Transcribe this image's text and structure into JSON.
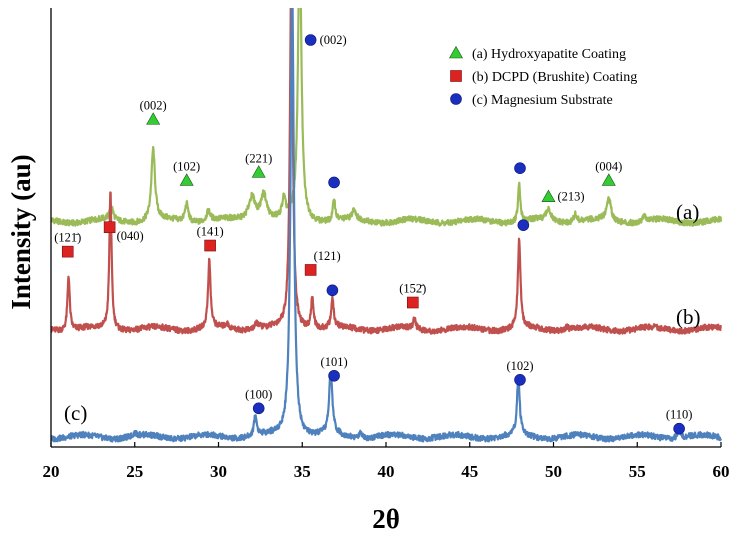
{
  "chart_data": {
    "type": "line",
    "title": "",
    "xlabel": "2θ",
    "ylabel": "Intensity (au)",
    "xlim": [
      20,
      60
    ],
    "ylim": [
      0,
      100
    ],
    "xticks": [
      20,
      25,
      30,
      35,
      40,
      45,
      50,
      55,
      60
    ],
    "grid": false,
    "legend_position": "top-right",
    "legend": [
      {
        "marker": "triangle",
        "label": "(a) Hydroxyapatite Coating",
        "color": "#33cc33"
      },
      {
        "marker": "square",
        "label": "(b) DCPD (Brushite) Coating",
        "color": "#dd2222"
      },
      {
        "marker": "circle",
        "label": "(c) Magnesium Substrate",
        "color": "#1a2fbf"
      }
    ],
    "series": [
      {
        "name": "(a)",
        "label": "(a)",
        "color": "#9bbb59",
        "baseline": 55.5,
        "peaks": [
          {
            "x": 23.6,
            "h": 3.5,
            "w": 0.12
          },
          {
            "x": 26.1,
            "h": 17.5,
            "w": 0.13
          },
          {
            "x": 28.1,
            "h": 4.5,
            "w": 0.12
          },
          {
            "x": 29.4,
            "h": 2.5,
            "w": 0.15
          },
          {
            "x": 32.0,
            "h": 6.0,
            "w": 0.25
          },
          {
            "x": 32.7,
            "h": 6.5,
            "w": 0.22
          },
          {
            "x": 33.9,
            "h": 4.5,
            "w": 0.12
          },
          {
            "x": 34.85,
            "h": 70.0,
            "w": 0.12
          },
          {
            "x": 36.9,
            "h": 5.5,
            "w": 0.08
          },
          {
            "x": 38.1,
            "h": 2.5,
            "w": 0.12
          },
          {
            "x": 47.95,
            "h": 9.0,
            "w": 0.08
          },
          {
            "x": 49.7,
            "h": 3.0,
            "w": 0.15
          },
          {
            "x": 51.3,
            "h": 2.0,
            "w": 0.12
          },
          {
            "x": 53.3,
            "h": 5.5,
            "w": 0.15
          },
          {
            "x": 55.4,
            "h": 1.5,
            "w": 0.1
          }
        ]
      },
      {
        "name": "(b)",
        "label": "(b)",
        "color": "#c0504d",
        "baseline": 29.0,
        "peaks": [
          {
            "x": 21.05,
            "h": 13.5,
            "w": 0.08
          },
          {
            "x": 23.55,
            "h": 34.0,
            "w": 0.08
          },
          {
            "x": 29.45,
            "h": 16.5,
            "w": 0.09
          },
          {
            "x": 30.5,
            "h": 1.0,
            "w": 0.1
          },
          {
            "x": 32.3,
            "h": 1.5,
            "w": 0.2
          },
          {
            "x": 34.35,
            "h": 90.0,
            "w": 0.1
          },
          {
            "x": 35.6,
            "h": 7.5,
            "w": 0.1
          },
          {
            "x": 36.8,
            "h": 7.0,
            "w": 0.09
          },
          {
            "x": 41.7,
            "h": 2.5,
            "w": 0.08
          },
          {
            "x": 47.95,
            "h": 22.0,
            "w": 0.09
          },
          {
            "x": 50.8,
            "h": 0.8,
            "w": 0.12
          }
        ]
      },
      {
        "name": "(c)",
        "label": "(c)",
        "color": "#4f81bd",
        "baseline": 2.5,
        "peaks": [
          {
            "x": 25.0,
            "h": 0.8,
            "w": 0.1
          },
          {
            "x": 32.2,
            "h": 5.0,
            "w": 0.1
          },
          {
            "x": 34.4,
            "h": 110.0,
            "w": 0.12
          },
          {
            "x": 36.7,
            "h": 15.0,
            "w": 0.12
          },
          {
            "x": 38.5,
            "h": 1.5,
            "w": 0.12
          },
          {
            "x": 47.9,
            "h": 14.0,
            "w": 0.1
          },
          {
            "x": 57.5,
            "h": 2.5,
            "w": 0.1
          }
        ]
      }
    ],
    "annotations": [
      {
        "label": "(002)",
        "x": 26.1,
        "y": 80.5,
        "marker": "triangle",
        "label_pos": "above"
      },
      {
        "label": "(102)",
        "x": 28.1,
        "y": 65.5,
        "marker": "triangle",
        "label_pos": "above"
      },
      {
        "label": "(221)",
        "x": 32.4,
        "y": 67.5,
        "marker": "triangle",
        "label_pos": "above"
      },
      {
        "label": "(213)",
        "x": 49.7,
        "y": 61.5,
        "marker": "triangle",
        "label_pos": "right"
      },
      {
        "label": "(004)",
        "x": 53.3,
        "y": 65.5,
        "marker": "triangle",
        "label_pos": "above"
      },
      {
        "label": "(002)",
        "x": 35.5,
        "y": 100.0,
        "marker": "circle",
        "label_pos": "right"
      },
      {
        "label": "",
        "x": 36.9,
        "y": 65.0,
        "marker": "circle",
        "label_pos": "none"
      },
      {
        "label": "",
        "x": 48.0,
        "y": 68.5,
        "marker": "circle",
        "label_pos": "none"
      },
      {
        "label": "(121̄)",
        "x": 21.0,
        "y": 48.0,
        "marker": "square",
        "label_pos": "above"
      },
      {
        "label": "(040)",
        "x": 23.5,
        "y": 54.0,
        "marker": "square",
        "label_pos": "below-right"
      },
      {
        "label": "(141)",
        "x": 29.5,
        "y": 49.5,
        "marker": "square",
        "label_pos": "above"
      },
      {
        "label": "(121)",
        "x": 35.5,
        "y": 43.5,
        "marker": "square",
        "label_pos": "above-right"
      },
      {
        "label": "(152̄)",
        "x": 41.6,
        "y": 35.5,
        "marker": "square",
        "label_pos": "above"
      },
      {
        "label": "",
        "x": 36.8,
        "y": 38.5,
        "marker": "circle",
        "label_pos": "none"
      },
      {
        "label": "",
        "x": 48.2,
        "y": 54.5,
        "marker": "circle",
        "label_pos": "none"
      },
      {
        "label": "(100)",
        "x": 32.4,
        "y": 9.5,
        "marker": "circle",
        "label_pos": "above"
      },
      {
        "label": "(101)",
        "x": 36.9,
        "y": 17.5,
        "marker": "circle",
        "label_pos": "above"
      },
      {
        "label": "(102)",
        "x": 48.0,
        "y": 16.5,
        "marker": "circle",
        "label_pos": "above"
      },
      {
        "label": "(110)",
        "x": 57.5,
        "y": 4.5,
        "marker": "circle",
        "label_pos": "above"
      }
    ]
  }
}
